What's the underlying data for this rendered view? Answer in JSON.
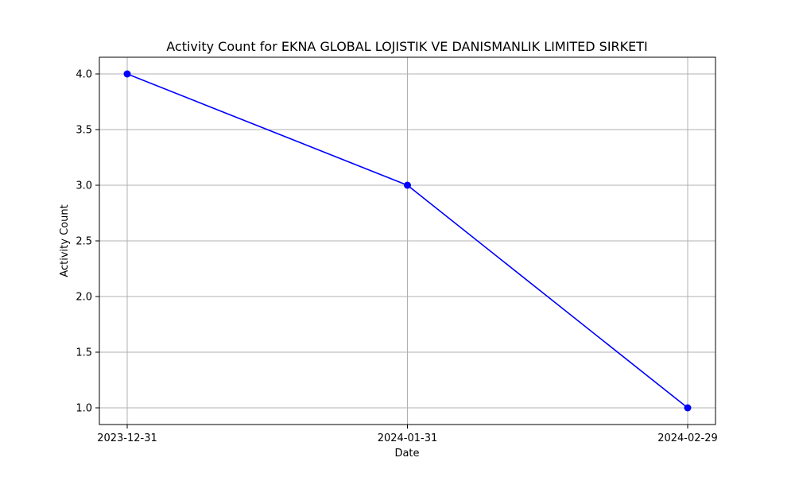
{
  "chart_data": {
    "type": "line",
    "title": "Activity Count for EKNA GLOBAL LOJISTIK VE DANISMANLIK LIMITED SIRKETI",
    "xlabel": "Date",
    "ylabel": "Activity Count",
    "x": [
      "2023-12-31",
      "2024-01-31",
      "2024-02-29"
    ],
    "series": [
      {
        "values": [
          4.0,
          3.0,
          1.0
        ],
        "color": "#0000ff",
        "marker": "circle"
      }
    ],
    "ylim": [
      0.85,
      4.15
    ],
    "yticks": [
      "1.0",
      "1.5",
      "2.0",
      "2.5",
      "3.0",
      "3.5",
      "4.0"
    ],
    "grid": true,
    "legend": false
  }
}
